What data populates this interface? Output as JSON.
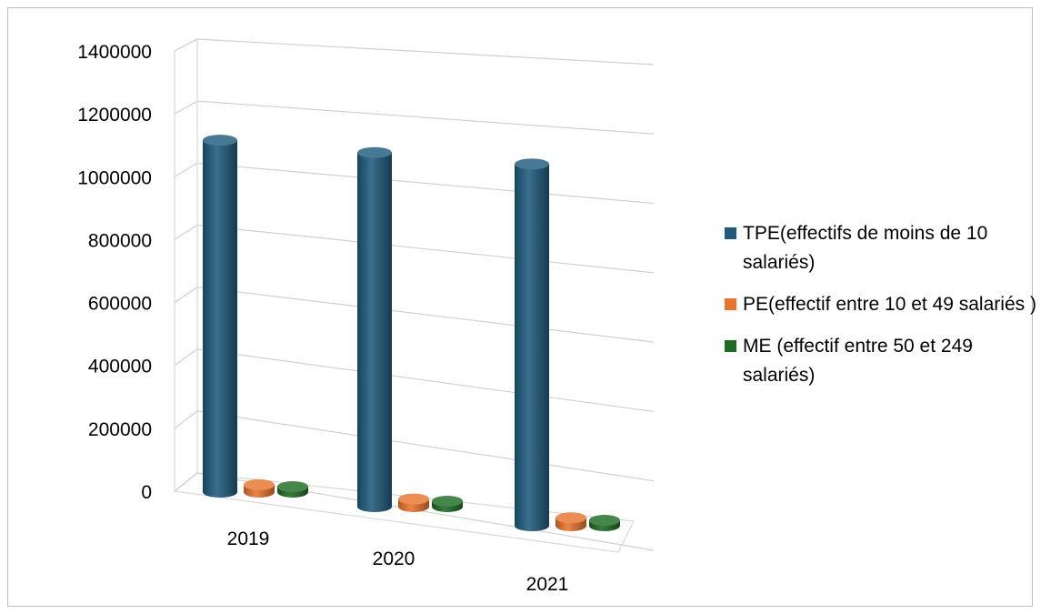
{
  "chart_data": {
    "type": "bar",
    "style": "3d-cylinder",
    "categories": [
      "2019",
      "2020",
      "2021"
    ],
    "series": [
      {
        "name": "TPE(effectifs de moins de 10 salariés)",
        "color": "#1F5B7D",
        "values": [
          1148000,
          1155000,
          1180000
        ]
      },
      {
        "name": "PE(effectif entre 10 et 49 salariés )",
        "color": "#E8742E",
        "values": [
          24000,
          25000,
          26000
        ]
      },
      {
        "name": "ME (effectif entre 50 et 249 salariés)",
        "color": "#1E6B24",
        "values": [
          4000,
          4200,
          4400
        ]
      }
    ],
    "yticks": [
      "1400000",
      "1200000",
      "1000000",
      "800000",
      "600000",
      "400000",
      "200000",
      "0"
    ],
    "ylim": [
      0,
      1400000
    ],
    "grid": true,
    "legend": "right"
  }
}
